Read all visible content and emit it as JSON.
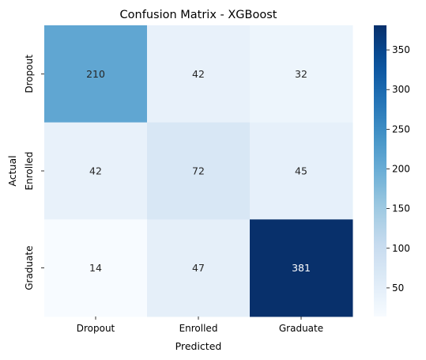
{
  "chart_data": {
    "type": "heatmap",
    "title": "Confusion Matrix - XGBoost",
    "xlabel": "Predicted",
    "ylabel": "Actual",
    "x_categories": [
      "Dropout",
      "Enrolled",
      "Graduate"
    ],
    "y_categories": [
      "Dropout",
      "Enrolled",
      "Graduate"
    ],
    "values": [
      [
        210,
        42,
        32
      ],
      [
        42,
        72,
        45
      ],
      [
        14,
        47,
        381
      ]
    ],
    "colormap": "Blues",
    "color_range": [
      14,
      381
    ],
    "colorbar_ticks": [
      50,
      100,
      150,
      200,
      250,
      300,
      350
    ],
    "annotate_cells": true
  }
}
